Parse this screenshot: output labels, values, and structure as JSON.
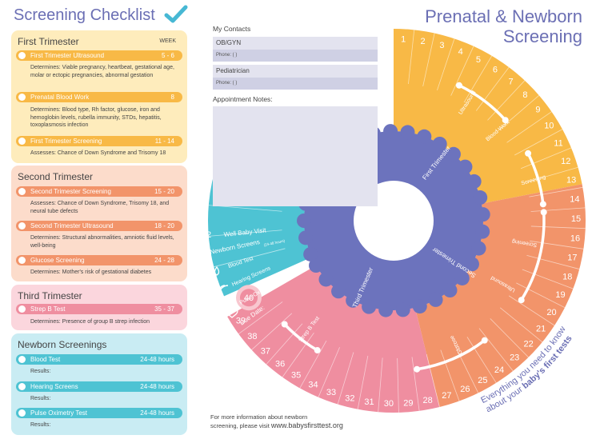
{
  "checklist": {
    "title": "Screening Checklist",
    "week_header": "WEEK",
    "sections": [
      {
        "title": "First Trimester",
        "items": [
          {
            "label": "First Trimester Ultrasound",
            "weeks": "5 - 6",
            "desc": "Determines:  Viable pregnancy, heartbeat, gestational age, molar or ectopic pregnancies, abnormal gestation"
          },
          {
            "label": "Prenatal Blood Work",
            "weeks": "8",
            "desc": "Determines: Blood type, Rh factor, glucose, iron and hemoglobin levels, rubella immunity, STDs, hepatitis, toxoplasmosis infection"
          },
          {
            "label": "First Trimester Screening",
            "weeks": "11 - 14",
            "desc": "Assesses: Chance of Down Syndrome and Trisomy 18"
          }
        ]
      },
      {
        "title": "Second Trimester",
        "items": [
          {
            "label": "Second Trimester Screening",
            "weeks": "15 - 20",
            "desc": "Assesses: Chance of Down Syndrome, Trisomy 18, and neural tube defects"
          },
          {
            "label": "Second Trimester Ultrasound",
            "weeks": "18 - 20",
            "desc": "Determines: Structural abnormalities, amniotic fluid levels, well-being"
          },
          {
            "label": "Glucose Screening",
            "weeks": "24 - 28",
            "desc": "Determines: Mother's risk of gestational diabetes"
          }
        ]
      },
      {
        "title": "Third Trimester",
        "items": [
          {
            "label": "Strep B Test",
            "weeks": "35 - 37",
            "desc": "Determines: Presence of group B strep infection"
          }
        ]
      },
      {
        "title": "Newborn Screenings",
        "items": [
          {
            "label": "Blood Test",
            "weeks": "24-48 hours",
            "desc": "Results:"
          },
          {
            "label": "Hearing Screens",
            "weeks": "24-48 hours",
            "desc": "Results:"
          },
          {
            "label": "Pulse Oximetry Test",
            "weeks": "24-48 hours",
            "desc": "Results:"
          }
        ]
      }
    ]
  },
  "contacts": {
    "title": "My Contacts",
    "obgyn": "OB/GYN",
    "pediatrician": "Pediatrician",
    "phone_label": "Phone: (            )",
    "notes_label": "Appointment Notes:"
  },
  "main_title": {
    "line1": "Prenatal & Newborn",
    "line2": "Screening"
  },
  "wheel": {
    "first_trimester": "First Trimester",
    "second_trimester": "Second Trimester",
    "third_trimester": "Third Trimester",
    "arc_labels": {
      "ultrasound1": "Ultrasound",
      "blood_work": "Blood Work",
      "screening1": "Screening",
      "screening2": "Screening",
      "ultrasound2": "Ultrasound",
      "glucose": "Glucose",
      "strep_b": "Strep B Test"
    },
    "newborn": {
      "well_baby_num": "2",
      "well_baby": "Well Baby Visit",
      "newborn_screens": "Newborn Screens",
      "newborn_screens_small": "(24-48 hours)",
      "blood_test": "Blood Test",
      "hearing": "Hearing Screens",
      "pulse": "Pulse Oximetry",
      "due_num": "40",
      "due_date": "Due Date:"
    },
    "weeks": [
      "1",
      "2",
      "3",
      "4",
      "5",
      "6",
      "7",
      "8",
      "9",
      "10",
      "11",
      "12",
      "13",
      "14",
      "15",
      "16",
      "17",
      "18",
      "19",
      "20",
      "21",
      "22",
      "23",
      "24",
      "25",
      "26",
      "27",
      "28",
      "29",
      "30",
      "31",
      "32",
      "33",
      "34",
      "35",
      "36",
      "37",
      "38",
      "39"
    ]
  },
  "tagline": {
    "part1": "Everything you need to know",
    "part2": "about your ",
    "part3": "baby's first tests"
  },
  "footer": {
    "line1": "For more information about newborn",
    "line2": "screening, please visit ",
    "url": "www.babysfirsttest.org"
  },
  "colors": {
    "first": "#f8b946",
    "second": "#f2946a",
    "third": "#ef8ea0",
    "newborn": "#4ec3d3",
    "core": "#6c73bd"
  }
}
